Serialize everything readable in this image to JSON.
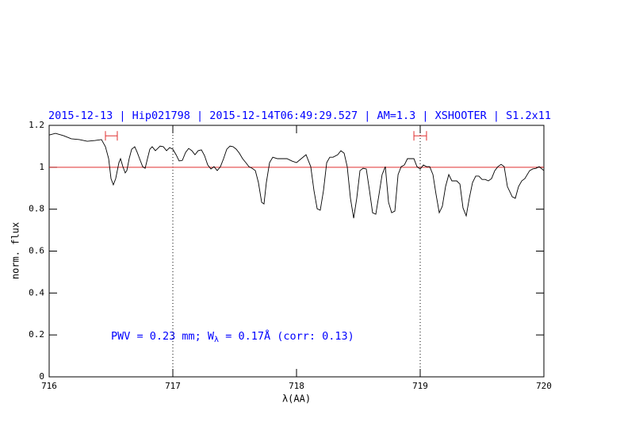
{
  "chart_data": {
    "type": "line",
    "title": "2015-12-13 | Hip021798 | 2015-12-14T06:49:29.527 | AM=1.3 | XSHOOTER | S1.2x11",
    "xlabel": "λ(AA)",
    "ylabel": "norm. flux",
    "annotation": {
      "text": "PWV = 0.23 mm; W",
      "subscript": "λ",
      "after": " = 0.17Å  (corr: 0.13)",
      "color": "#0000ff"
    },
    "title_color": "#0000ff",
    "color": "#000000",
    "xlim": [
      716,
      720
    ],
    "ylim": [
      0,
      1.2
    ],
    "xticks": [
      716,
      717,
      718,
      719,
      720
    ],
    "yticks": [
      0,
      0.2,
      0.4,
      0.6,
      0.8,
      1,
      1.2
    ],
    "reference_line": {
      "y": 1,
      "color": "#e03030"
    },
    "vlines": [
      717,
      719
    ],
    "intervals": [
      {
        "x": [
          716.455,
          716.551
        ],
        "y": 1.15,
        "color": "#e03030"
      },
      {
        "x": [
          718.949,
          719.051
        ],
        "y": 1.15,
        "color": "#e03030"
      }
    ],
    "x": [
      716.0,
      716.051,
      716.115,
      716.179,
      716.244,
      716.308,
      716.372,
      716.423,
      716.455,
      716.481,
      716.5,
      716.519,
      716.538,
      716.564,
      716.577,
      716.596,
      716.615,
      716.628,
      716.647,
      716.667,
      716.692,
      716.712,
      716.731,
      716.756,
      716.776,
      716.795,
      716.814,
      716.833,
      716.859,
      716.878,
      716.897,
      716.923,
      716.949,
      716.974,
      717.0,
      717.026,
      717.051,
      717.077,
      717.103,
      717.128,
      717.154,
      717.179,
      717.205,
      717.231,
      717.256,
      717.282,
      717.308,
      717.333,
      717.359,
      717.385,
      717.41,
      717.436,
      717.462,
      717.487,
      717.513,
      717.538,
      717.564,
      717.59,
      717.615,
      717.641,
      717.667,
      717.692,
      717.718,
      717.737,
      717.756,
      717.782,
      717.808,
      717.846,
      717.885,
      717.923,
      717.962,
      718.0,
      718.038,
      718.077,
      718.115,
      718.141,
      718.167,
      718.192,
      718.218,
      718.244,
      718.269,
      718.295,
      718.333,
      718.359,
      718.385,
      718.41,
      718.436,
      718.462,
      718.487,
      718.513,
      718.538,
      718.564,
      718.59,
      718.615,
      718.641,
      718.667,
      718.692,
      718.718,
      718.744,
      718.769,
      718.795,
      718.821,
      718.846,
      718.872,
      718.897,
      718.923,
      718.949,
      718.974,
      719.0,
      719.026,
      719.051,
      719.077,
      719.103,
      719.128,
      719.154,
      719.179,
      719.205,
      719.231,
      719.256,
      719.295,
      719.321,
      719.346,
      719.372,
      719.397,
      719.423,
      719.449,
      719.474,
      719.5,
      719.526,
      719.551,
      719.577,
      719.603,
      719.628,
      719.654,
      719.679,
      719.705,
      719.744,
      719.769,
      719.795,
      719.821,
      719.846,
      719.885,
      719.91,
      719.936,
      719.962,
      720.0
    ],
    "values": [
      1.154,
      1.162,
      1.151,
      1.136,
      1.132,
      1.124,
      1.128,
      1.132,
      1.098,
      1.041,
      0.946,
      0.916,
      0.946,
      1.022,
      1.041,
      1.003,
      0.973,
      0.984,
      1.041,
      1.086,
      1.098,
      1.071,
      1.041,
      1.003,
      0.995,
      1.041,
      1.086,
      1.098,
      1.079,
      1.09,
      1.101,
      1.098,
      1.079,
      1.094,
      1.086,
      1.06,
      1.03,
      1.033,
      1.071,
      1.09,
      1.079,
      1.06,
      1.079,
      1.083,
      1.056,
      1.011,
      0.992,
      1.003,
      0.984,
      1.003,
      1.041,
      1.086,
      1.101,
      1.098,
      1.086,
      1.067,
      1.041,
      1.022,
      1.003,
      0.995,
      0.984,
      0.927,
      0.833,
      0.825,
      0.927,
      1.022,
      1.048,
      1.041,
      1.041,
      1.041,
      1.03,
      1.022,
      1.041,
      1.06,
      1.003,
      0.889,
      0.802,
      0.795,
      0.889,
      1.022,
      1.048,
      1.048,
      1.06,
      1.079,
      1.067,
      1.003,
      0.852,
      0.757,
      0.852,
      0.984,
      0.995,
      0.992,
      0.889,
      0.783,
      0.776,
      0.871,
      0.965,
      1.003,
      0.833,
      0.783,
      0.791,
      0.965,
      1.003,
      1.011,
      1.041,
      1.041,
      1.041,
      1.003,
      0.992,
      1.011,
      1.003,
      1.003,
      0.965,
      0.871,
      0.783,
      0.814,
      0.908,
      0.965,
      0.935,
      0.935,
      0.92,
      0.806,
      0.768,
      0.852,
      0.927,
      0.958,
      0.958,
      0.942,
      0.942,
      0.935,
      0.946,
      0.984,
      1.003,
      1.014,
      1.003,
      0.908,
      0.859,
      0.852,
      0.908,
      0.935,
      0.946,
      0.984,
      0.992,
      0.995,
      1.003,
      0.984
    ]
  }
}
